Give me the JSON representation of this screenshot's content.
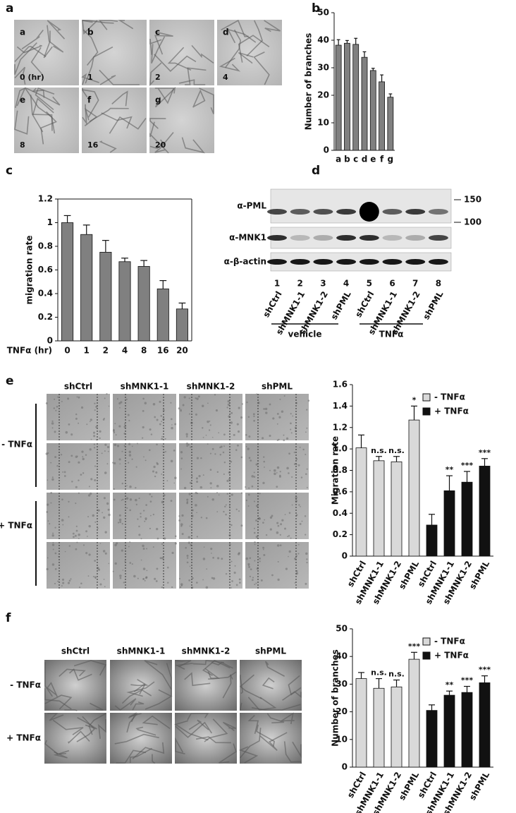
{
  "panel_labels": [
    "a",
    "b",
    "c",
    "d",
    "e",
    "f"
  ],
  "panel_a": {
    "tiles": [
      {
        "letter": "a",
        "time": "0 (hr)"
      },
      {
        "letter": "b",
        "time": "1"
      },
      {
        "letter": "c",
        "time": "2"
      },
      {
        "letter": "d",
        "time": "4"
      },
      {
        "letter": "e",
        "time": "8"
      },
      {
        "letter": "f",
        "time": "16"
      },
      {
        "letter": "g",
        "time": "20"
      }
    ]
  },
  "chart_data": [
    {
      "type": "bar",
      "ylabel": "Number of branches",
      "categories": [
        "a",
        "b",
        "c",
        "d",
        "e",
        "f",
        "g"
      ],
      "values": [
        38.2,
        38.9,
        38.5,
        33.8,
        29,
        24.9,
        19.3
      ],
      "errors": [
        2,
        1,
        2.2,
        2,
        0.8,
        2.5,
        1.2
      ],
      "color": "#808080",
      "ylim": [
        0,
        50
      ],
      "yticks": [
        0,
        10,
        20,
        30,
        40,
        50
      ]
    },
    {
      "type": "bar",
      "ylabel": "migration rate",
      "xlabel": "TNFα (hr)",
      "categories": [
        "0",
        "1",
        "2",
        "4",
        "8",
        "16",
        "20"
      ],
      "values": [
        1.0,
        0.9,
        0.75,
        0.67,
        0.63,
        0.44,
        0.27
      ],
      "errors": [
        0.06,
        0.08,
        0.1,
        0.03,
        0.05,
        0.07,
        0.05
      ],
      "color": "#808080",
      "ylim": [
        0,
        1.2
      ],
      "yticks": [
        0,
        0.2,
        0.4,
        0.6,
        0.8,
        1,
        1.2
      ],
      "frame": true
    },
    {
      "type": "bar",
      "ylabel": "Migration rate",
      "categories": [
        "shCtrl",
        "shMNK1-1",
        "shMNK1-2",
        "shPML",
        "shCtrl",
        "shMNK1-1",
        "shMNK1-2",
        "shPML"
      ],
      "series": [
        {
          "name": "- TNFα",
          "color": "#d9d9d9",
          "values": [
            1.01,
            0.89,
            0.88,
            1.27,
            null,
            null,
            null,
            null
          ],
          "errors": [
            0.12,
            0.04,
            0.05,
            0.13,
            null,
            null,
            null,
            null
          ],
          "annotations": [
            null,
            "n.s.",
            "n.s.",
            "*",
            null,
            null,
            null,
            null
          ]
        },
        {
          "name": "+ TNFα",
          "color": "#111111",
          "values": [
            null,
            null,
            null,
            null,
            0.29,
            0.61,
            0.69,
            0.84
          ],
          "errors": [
            null,
            null,
            null,
            null,
            0.1,
            0.14,
            0.1,
            0.07
          ],
          "annotations": [
            null,
            null,
            null,
            null,
            null,
            "**",
            "***",
            "***"
          ]
        }
      ],
      "ylim": [
        0,
        1.6
      ],
      "yticks": [
        0,
        0.2,
        0.4,
        0.6,
        0.8,
        {
          "value": 1,
          "label": "1.0"
        },
        1.2,
        1.4,
        1.6
      ],
      "legend": "upper right"
    },
    {
      "type": "bar",
      "ylabel": "Number of branches",
      "categories": [
        "shCtrl",
        "shMNK1-1",
        "shMNK1-2",
        "shPML",
        "shCtrl",
        "shMNK1-1",
        "shMNK1-2",
        "shPML"
      ],
      "series": [
        {
          "name": "- TNFα",
          "color": "#d9d9d9",
          "values": [
            32,
            28.5,
            29,
            39,
            null,
            null,
            null,
            null
          ],
          "errors": [
            2.2,
            3.5,
            2.5,
            2.5,
            null,
            null,
            null,
            null
          ],
          "annotations": [
            null,
            "n.s.",
            "n.s.",
            "***",
            null,
            null,
            null,
            null
          ]
        },
        {
          "name": "+ TNFα",
          "color": "#111111",
          "values": [
            null,
            null,
            null,
            null,
            20.5,
            26,
            27,
            30.5
          ],
          "errors": [
            null,
            null,
            null,
            null,
            2,
            1.5,
            2.2,
            2.5
          ],
          "annotations": [
            null,
            null,
            null,
            null,
            null,
            "**",
            "***",
            "***"
          ]
        }
      ],
      "ylim": [
        0,
        50
      ],
      "yticks": [
        0,
        10,
        20,
        30,
        40,
        50
      ],
      "legend": "upper right"
    }
  ],
  "panel_d": {
    "antibodies": [
      "α-PML",
      "α-MNK1",
      "α-β-actin"
    ],
    "markers": [
      "150",
      "100"
    ],
    "lanes": [
      "1",
      "2",
      "3",
      "4",
      "5",
      "6",
      "7",
      "8"
    ],
    "lane_names": [
      "shCtrl",
      "shMNK1-1",
      "shMNK1-2",
      "shPML",
      "shCtrl",
      "shMNK1-1",
      "shMNK1-2",
      "shPML"
    ],
    "groups": [
      "vehicle",
      "TNFα"
    ]
  },
  "panel_e": {
    "columns": [
      "shCtrl",
      "shMNK1-1",
      "shMNK1-2",
      "shPML"
    ],
    "rows": [
      "- TNFα",
      "+ TNFα"
    ]
  },
  "panel_f": {
    "columns": [
      "shCtrl",
      "shMNK1-1",
      "shMNK1-2",
      "shPML"
    ],
    "rows": [
      "- TNFα",
      "+ TNFα"
    ]
  }
}
